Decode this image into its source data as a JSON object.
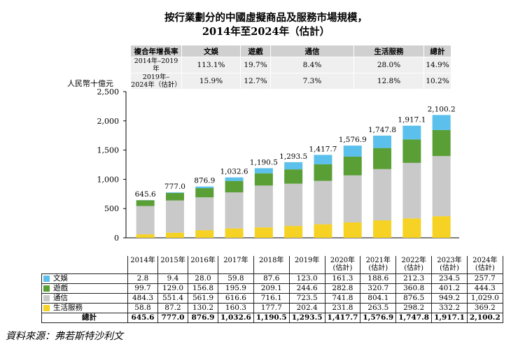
{
  "title_line1": "按行業劃分的中國虛擬商品及服務市場規模，",
  "title_line2": "2014年至2024年（估計）",
  "cagr": {
    "header": [
      "複合年增長率",
      "文娛",
      "遊戲",
      "通信",
      "生活服務",
      "總計"
    ],
    "rows": [
      {
        "label": "2014年–2019年",
        "values": [
          "113.1%",
          "19.7%",
          "8.4%",
          "28.0%",
          "14.9%"
        ]
      },
      {
        "label_line1": "2019年–",
        "label_line2": "2024年（估計）",
        "values": [
          "15.9%",
          "12.7%",
          "7.3%",
          "12.8%",
          "10.2%"
        ]
      }
    ]
  },
  "y_unit": "人民幣十億元",
  "source": "資料來源：弗若斯特沙利文",
  "colors": {
    "文娛": "#5bc0eb",
    "遊戲": "#5a9e36",
    "通信": "#c9c9c9",
    "生活服務": "#f5d223"
  },
  "chart_data": {
    "type": "bar",
    "stacked": true,
    "categories": [
      "2014年",
      "2015年",
      "2016年",
      "2017年",
      "2018年",
      "2019年",
      "2020年\n(估計)",
      "2021年\n(估計)",
      "2022年\n(估計)",
      "2023年\n(估計)",
      "2024年\n(估計)"
    ],
    "series": [
      {
        "name": "生活服務",
        "color": "#f5d223",
        "values": [
          58.8,
          87.2,
          130.2,
          160.3,
          177.7,
          202.4,
          231.8,
          263.5,
          298.2,
          332.2,
          369.2
        ]
      },
      {
        "name": "通信",
        "color": "#c9c9c9",
        "values": [
          484.3,
          551.4,
          561.9,
          616.6,
          716.1,
          723.5,
          741.8,
          804.1,
          876.5,
          949.2,
          1029.0
        ]
      },
      {
        "name": "遊戲",
        "color": "#5a9e36",
        "values": [
          99.7,
          129.0,
          156.8,
          195.9,
          209.1,
          244.6,
          282.8,
          320.7,
          360.8,
          401.2,
          444.3
        ]
      },
      {
        "name": "文娛",
        "color": "#5bc0eb",
        "values": [
          2.8,
          9.4,
          28.0,
          59.8,
          87.6,
          123.0,
          161.3,
          188.6,
          212.3,
          234.5,
          257.7
        ]
      }
    ],
    "totals": [
      645.6,
      777.0,
      876.9,
      1032.6,
      1190.5,
      1293.5,
      1417.7,
      1576.9,
      1747.8,
      1917.1,
      2100.2
    ],
    "ylim": [
      0,
      2500
    ],
    "yticks": [
      "0",
      "500",
      "1,000",
      "1,500",
      "2,000",
      "2,500"
    ],
    "grid": false
  },
  "table": {
    "rows": [
      {
        "name": "文娛",
        "values": [
          "2.8",
          "9.4",
          "28.0",
          "59.8",
          "87.6",
          "123.0",
          "161.3",
          "188.6",
          "212.3",
          "234.5",
          "257.7"
        ]
      },
      {
        "name": "遊戲",
        "values": [
          "99.7",
          "129.0",
          "156.8",
          "195.9",
          "209.1",
          "244.6",
          "282.8",
          "320.7",
          "360.8",
          "401.2",
          "444.3"
        ]
      },
      {
        "name": "通信",
        "values": [
          "484.3",
          "551.4",
          "561.9",
          "616.6",
          "716.1",
          "723.5",
          "741.8",
          "804.1",
          "876.5",
          "949.2",
          "1,029.0"
        ]
      },
      {
        "name": "生活服務",
        "values": [
          "58.8",
          "87.2",
          "130.2",
          "160.3",
          "177.7",
          "202.4",
          "231.8",
          "263.5",
          "298.2",
          "332.2",
          "369.2"
        ]
      }
    ],
    "total_label": "總計",
    "totals": [
      "645.6",
      "777.0",
      "876.9",
      "1,032.6",
      "1,190.5",
      "1,293.5",
      "1,417.7",
      "1,576.9",
      "1,747.8",
      "1,917.1",
      "2,100.2"
    ]
  }
}
